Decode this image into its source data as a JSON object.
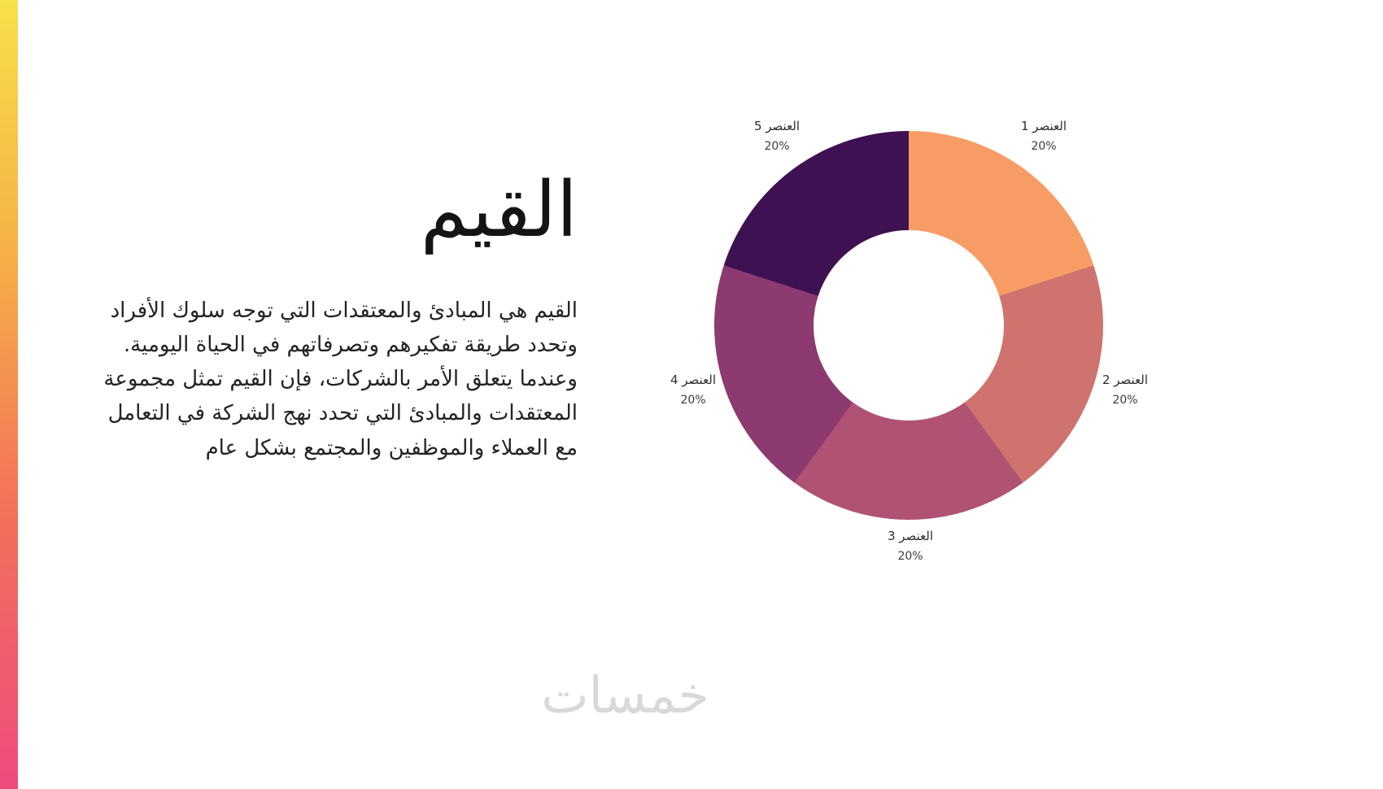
{
  "slide": {
    "title": "القيم",
    "paragraph": "القيم هي المبادئ والمعتقدات التي توجه سلوك الأفراد وتحدد طريقة تفكيرهم وتصرفاتهم في الحياة اليومية. وعندما يتعلق الأمر بالشركات، فإن القيم تمثل مجموعة المعتقدات والمبادئ التي تحدد نهج الشركة في التعامل مع العملاء والموظفين والمجتمع بشكل عام",
    "watermark": "خمسات"
  },
  "accent_gradient": [
    "#f7e04a",
    "#f6b445",
    "#f3705a",
    "#ee4b7d"
  ],
  "chart_data": {
    "type": "pie",
    "donut": true,
    "title": "",
    "categories": [
      "العنصر 1",
      "العنصر 2",
      "العنصر 3",
      "العنصر 4",
      "العنصر 5"
    ],
    "values": [
      20,
      20,
      20,
      20,
      20
    ],
    "value_labels": [
      "20%",
      "20%",
      "20%",
      "20%",
      "20%"
    ],
    "colors": [
      "#f89c66",
      "#ce736e",
      "#b05273",
      "#8c3a70",
      "#3d1152"
    ],
    "start_angle_deg": 0,
    "direction": "clockwise",
    "inner_radius_ratio": 0.49,
    "legend_position": "outside-labels"
  }
}
